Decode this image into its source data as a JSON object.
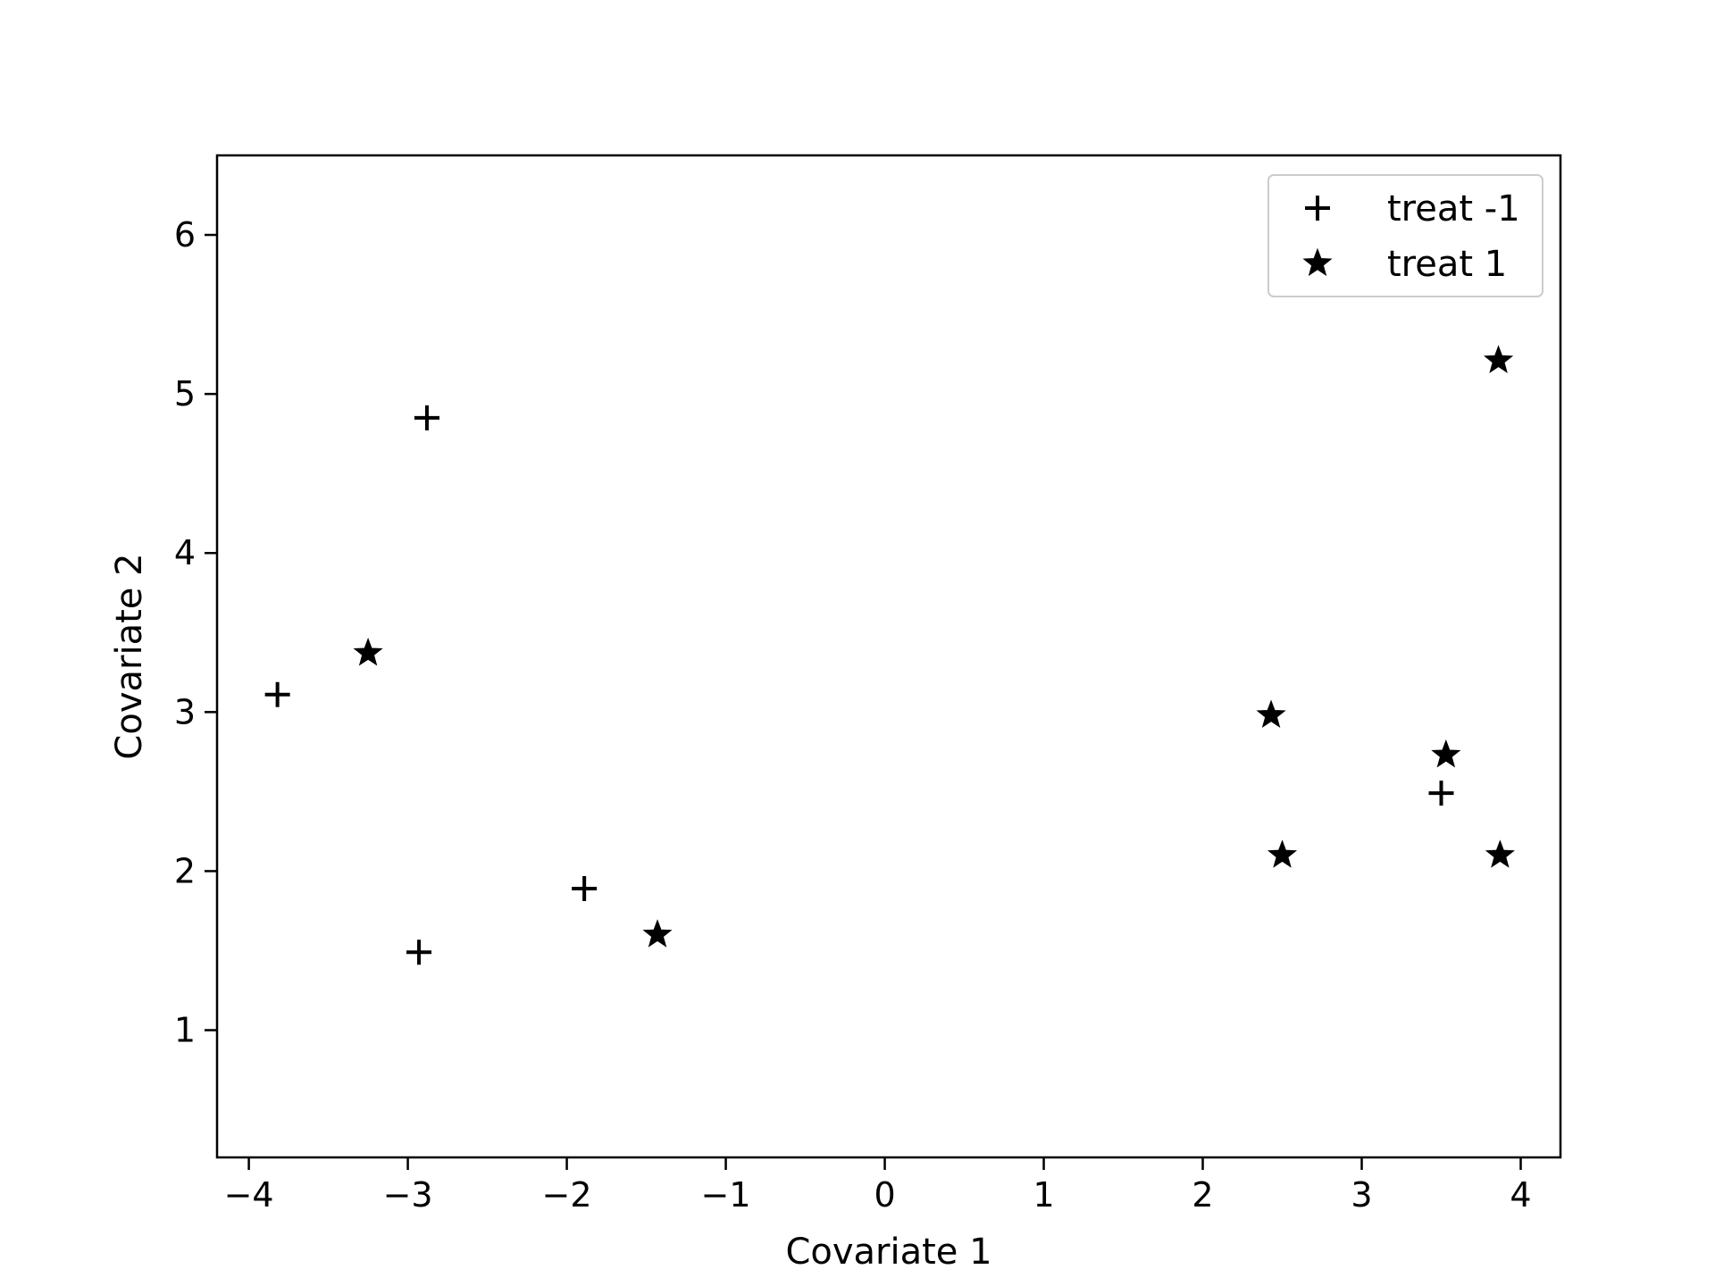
{
  "chart_data": {
    "type": "scatter",
    "title": "",
    "xlabel": "Covariate 1",
    "ylabel": "Covariate 2",
    "xlim": [
      -4.2,
      4.25
    ],
    "ylim": [
      0.2,
      6.5
    ],
    "xticks": [
      -4,
      -3,
      -2,
      -1,
      0,
      1,
      2,
      3,
      4
    ],
    "xtick_labels": [
      "−4",
      "−3",
      "−2",
      "−1",
      "0",
      "1",
      "2",
      "3",
      "4"
    ],
    "yticks": [
      1,
      2,
      3,
      4,
      5,
      6
    ],
    "ytick_labels": [
      "1",
      "2",
      "3",
      "4",
      "5",
      "6"
    ],
    "grid": false,
    "legend_position": "top-right",
    "series": [
      {
        "name": "treat -1",
        "marker": "plus",
        "color": "#000000",
        "x": [
          -3.82,
          -2.88,
          -2.93,
          -1.89,
          3.5
        ],
        "y": [
          3.11,
          4.85,
          1.49,
          1.89,
          2.49
        ]
      },
      {
        "name": "treat 1",
        "marker": "star",
        "color": "#000000",
        "x": [
          -3.25,
          -1.43,
          2.43,
          2.5,
          3.53,
          3.87,
          3.86
        ],
        "y": [
          3.37,
          1.6,
          2.98,
          2.1,
          2.73,
          2.1,
          5.21
        ]
      }
    ]
  }
}
